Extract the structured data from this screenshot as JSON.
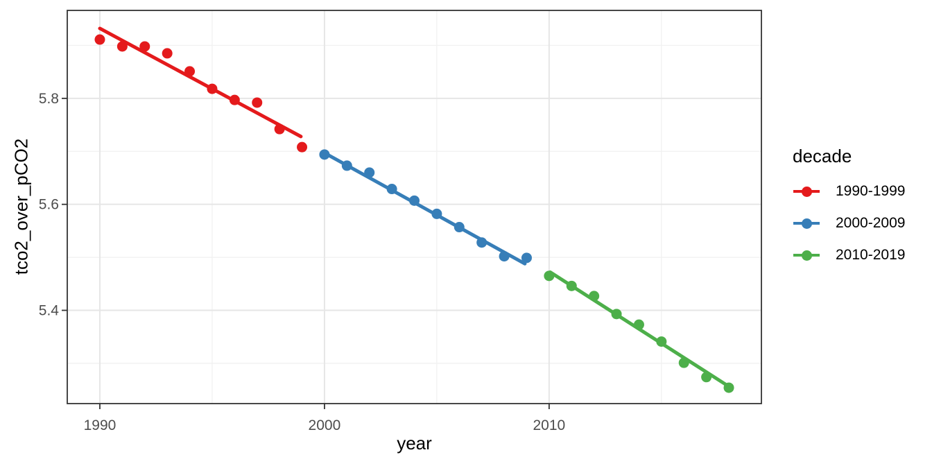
{
  "style": {
    "background": "#ffffff",
    "panel_border": "#333333",
    "tick_color": "#333333",
    "tick_label_color": "#4D4D4D",
    "title_color": "#000000",
    "grid_major": "#E6E6E6",
    "grid_minor": "#F1F1F1",
    "palette": [
      "#E41A1C",
      "#377EB8",
      "#4DAF4A"
    ]
  },
  "chart_data": {
    "type": "scatter",
    "title": "",
    "xlabel": "year",
    "ylabel": "tco2_over_pCO2",
    "legend_title": "decade",
    "legend_position": "right",
    "grid": true,
    "xlim": [
      1988.55,
      2019.45
    ],
    "ylim": [
      5.224,
      5.966
    ],
    "x_ticks": [
      1990,
      2000,
      2010
    ],
    "x_tick_labels": [
      "1990",
      "2000",
      "2010"
    ],
    "y_ticks": [
      5.4,
      5.6,
      5.8
    ],
    "y_tick_labels": [
      "5.4",
      "5.6",
      "5.8"
    ],
    "x_minor_gridlines": [
      1995,
      2005,
      2015
    ],
    "y_minor_gridlines": [
      5.3,
      5.5,
      5.7,
      5.9
    ],
    "series": [
      {
        "name": "1990-1999",
        "color": "#E41A1C",
        "x": [
          1990,
          1991,
          1992,
          1993,
          1994,
          1995,
          1996,
          1997,
          1998,
          1999
        ],
        "y": [
          5.911,
          5.898,
          5.898,
          5.885,
          5.851,
          5.818,
          5.797,
          5.792,
          5.742,
          5.708
        ],
        "trend": {
          "x1": 1990.0,
          "y1": 5.932,
          "x2": 1998.95,
          "y2": 5.728
        }
      },
      {
        "name": "2000-2009",
        "color": "#377EB8",
        "x": [
          2000,
          2001,
          2002,
          2003,
          2004,
          2005,
          2006,
          2007,
          2008,
          2009
        ],
        "y": [
          5.694,
          5.673,
          5.66,
          5.629,
          5.607,
          5.582,
          5.557,
          5.528,
          5.502,
          5.499
        ],
        "trend": {
          "x1": 2000.0,
          "y1": 5.697,
          "x2": 2008.92,
          "y2": 5.488
        }
      },
      {
        "name": "2010-2019",
        "color": "#4DAF4A",
        "x": [
          2010,
          2011,
          2012,
          2013,
          2014,
          2015,
          2016,
          2017,
          2018
        ],
        "y": [
          5.465,
          5.446,
          5.427,
          5.393,
          5.373,
          5.341,
          5.301,
          5.274,
          5.254
        ],
        "trend": {
          "x1": 2010.05,
          "y1": 5.472,
          "x2": 2018.05,
          "y2": 5.255
        }
      }
    ]
  }
}
